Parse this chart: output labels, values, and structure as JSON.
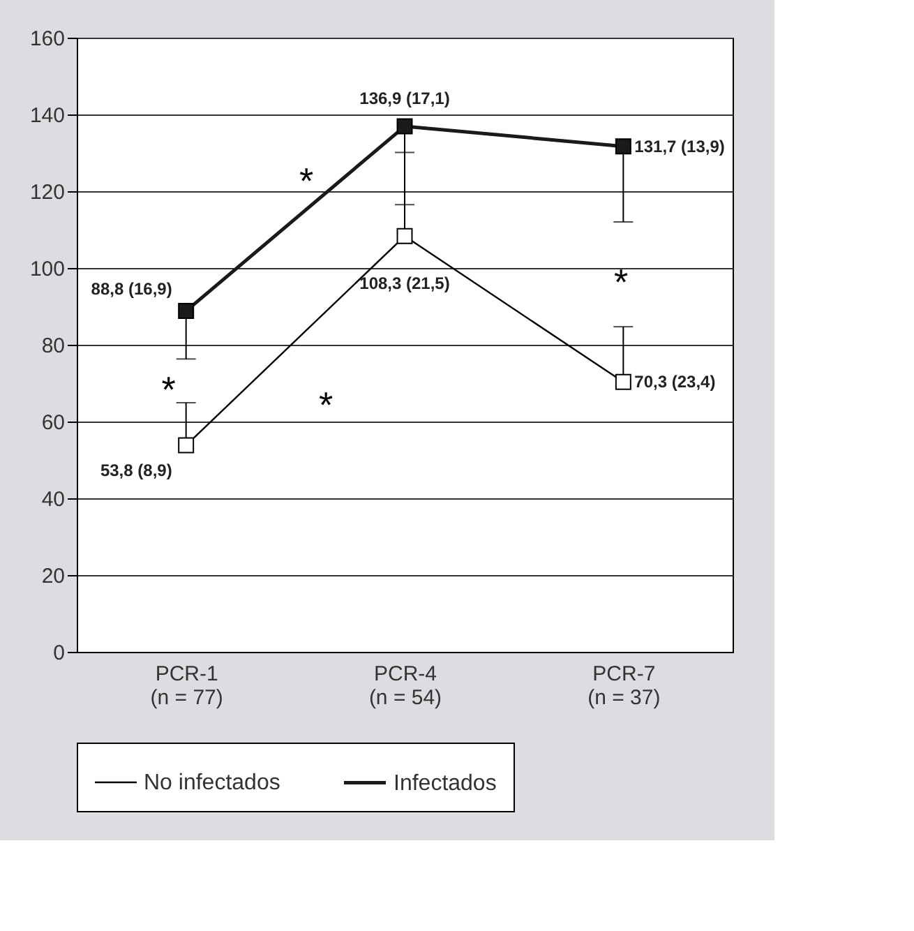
{
  "chart_data": {
    "type": "line",
    "categories": [
      "PCR-1\n(n = 77)",
      "PCR-4\n(n = 54)",
      "PCR-7\n(n = 37)"
    ],
    "series": [
      {
        "name": "No infectados",
        "color": "#000000",
        "values": [
          53.8,
          108.3,
          70.3
        ],
        "errors": [
          [
            53.8,
            64.9
          ],
          [
            108.3,
            130.1
          ],
          [
            70.3,
            84.7
          ]
        ],
        "value_labels": [
          "53,8 (8,9)",
          "108,3 (21,5)",
          "70,3 (23,4)"
        ]
      },
      {
        "name": "Infectados",
        "color": "#1a1a1a",
        "values": [
          88.8,
          136.9,
          131.7
        ],
        "errors": [
          [
            76.3,
            88.8
          ],
          [
            116.5,
            136.9
          ],
          [
            112,
            131.7
          ]
        ],
        "value_labels": [
          "88,8 (16,9)",
          "136,9 (17,1)",
          "131,7 (13,9)"
        ]
      }
    ],
    "annotations": [
      "*",
      "*",
      "*",
      "*"
    ],
    "ylim": [
      0,
      160
    ],
    "yticks": [
      0,
      20,
      40,
      60,
      80,
      100,
      120,
      140,
      160
    ],
    "grid": "y",
    "legend": "bottom",
    "marker": "square",
    "line_style": "solid"
  }
}
